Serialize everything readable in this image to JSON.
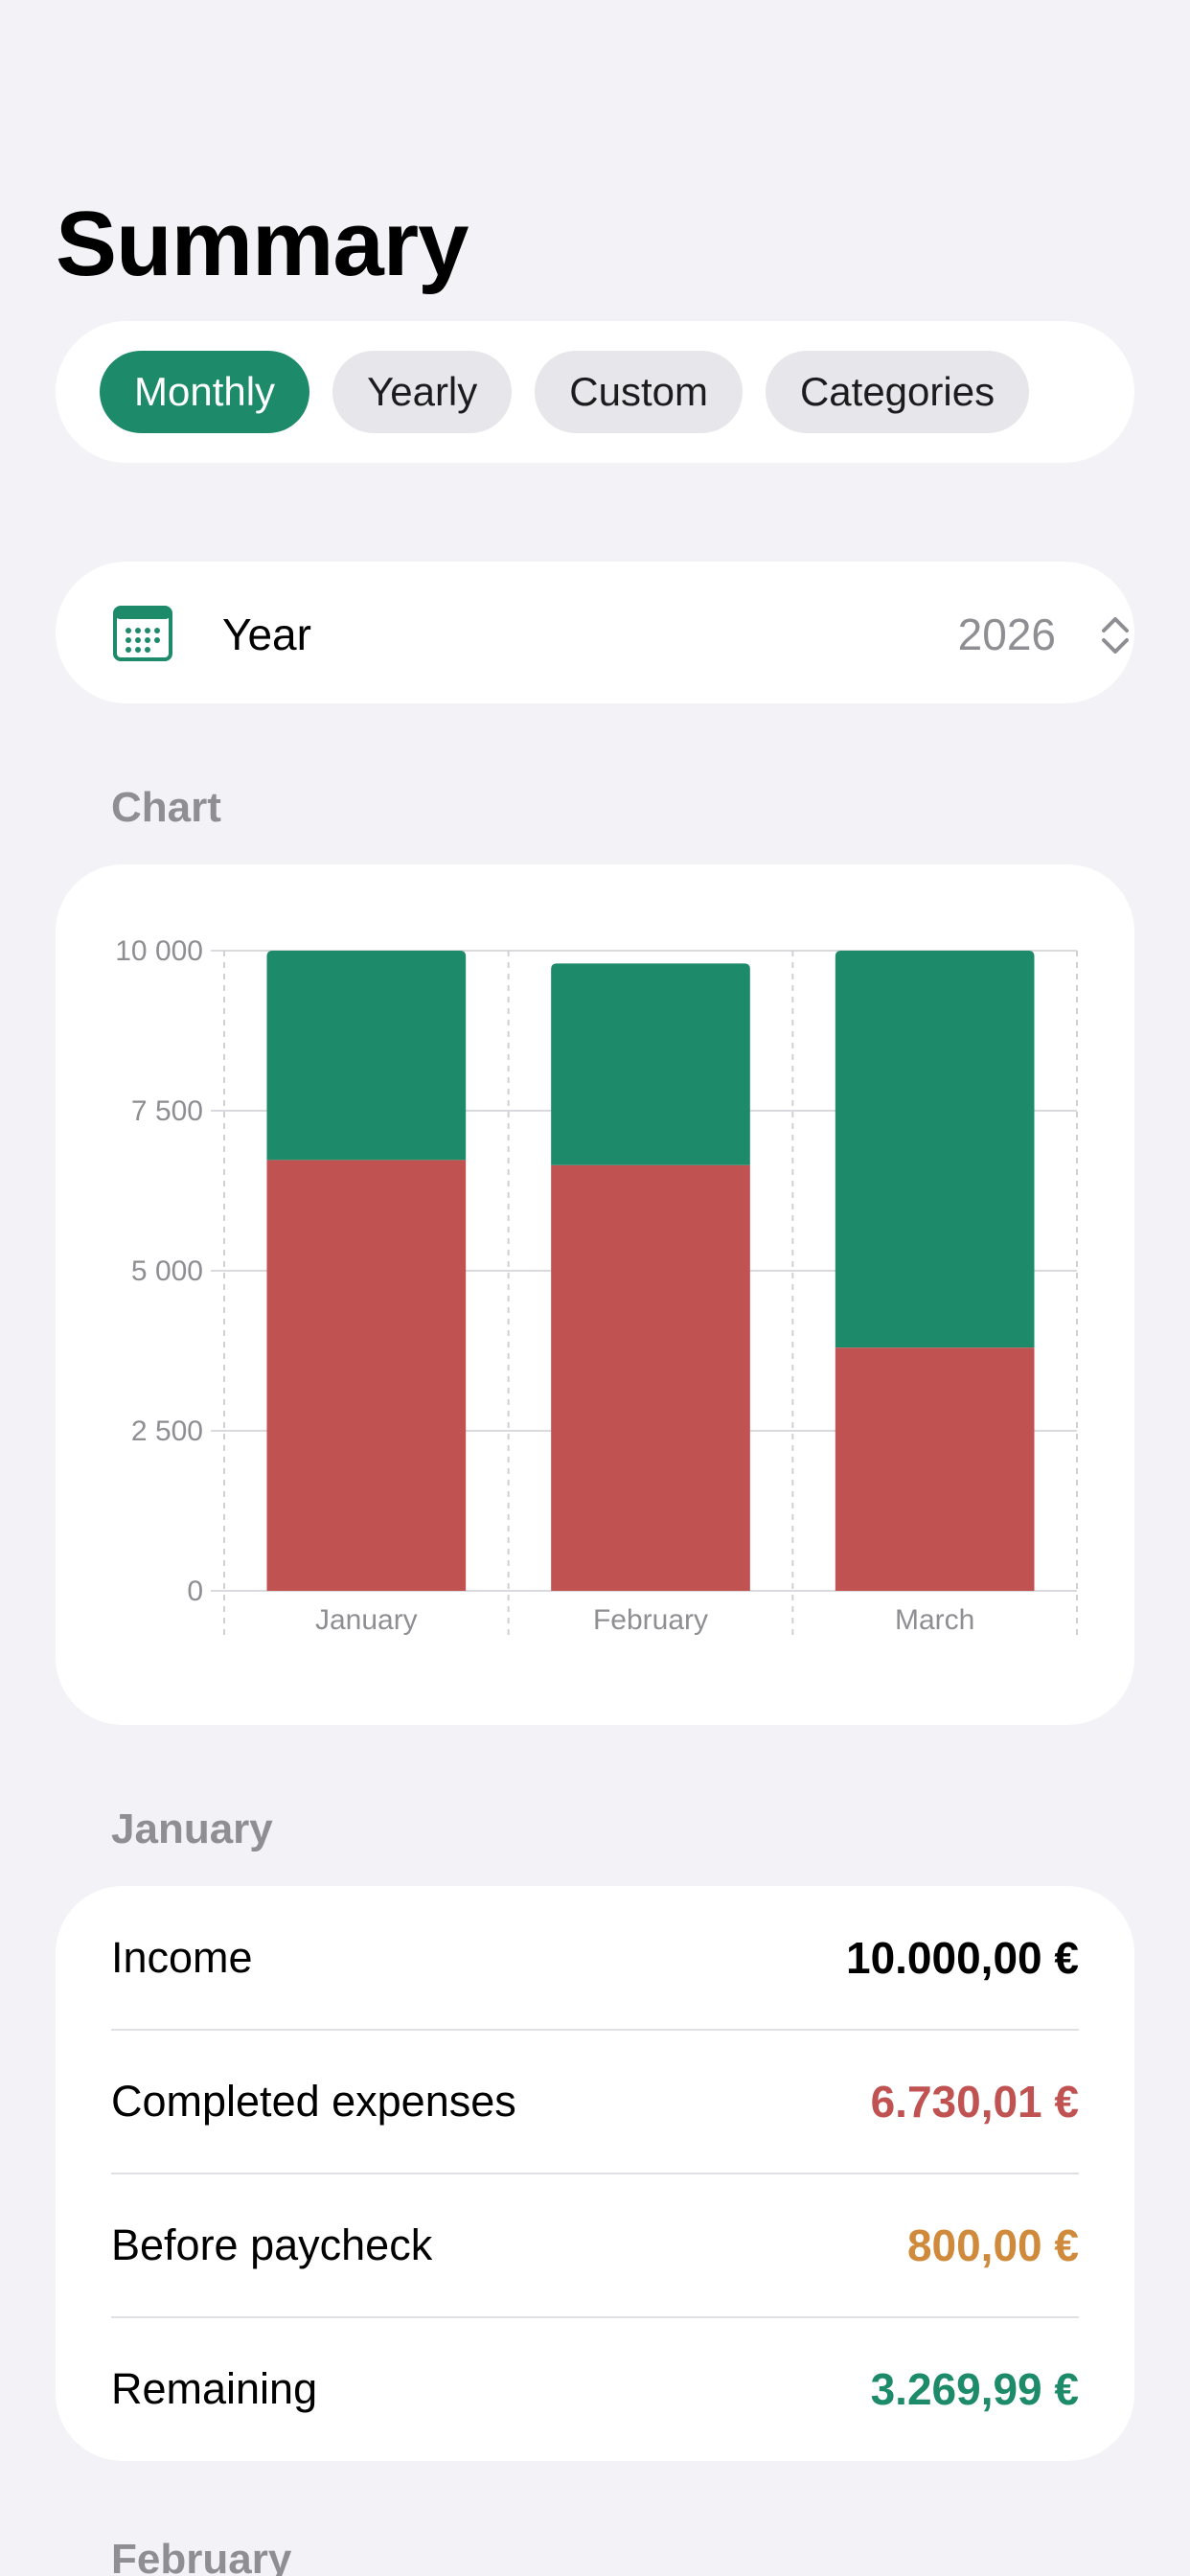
{
  "header": {
    "title": "Summary"
  },
  "segments": [
    {
      "label": "Monthly",
      "active": true
    },
    {
      "label": "Yearly",
      "active": false
    },
    {
      "label": "Custom",
      "active": false
    },
    {
      "label": "Categories",
      "active": false
    }
  ],
  "year_picker": {
    "label": "Year",
    "value": "2026",
    "icon": "calendar-icon",
    "chevron": "chevron-up-down-icon"
  },
  "chart_section": {
    "header": "Chart"
  },
  "chart_data": {
    "type": "bar",
    "stacked": true,
    "categories": [
      "January",
      "February",
      "March"
    ],
    "series": [
      {
        "name": "",
        "color": "#c05252",
        "values": [
          6730,
          6650,
          3800
        ]
      },
      {
        "name": "",
        "color": "#1d8a69",
        "values": [
          3270,
          3150,
          6200
        ]
      }
    ],
    "ylim": [
      0,
      10000
    ],
    "yticks": [
      0,
      2500,
      5000,
      7500,
      10000
    ],
    "ytick_labels": [
      "0",
      "2 500",
      "5 000",
      "7 500",
      "10 000"
    ],
    "grid": true
  },
  "january": {
    "header": "January",
    "rows": [
      {
        "label": "Income",
        "value": "10.000,00 €",
        "color": "#000000"
      },
      {
        "label": "Completed expenses",
        "value": "6.730,01 €",
        "color": "#c05252"
      },
      {
        "label": "Before paycheck",
        "value": "800,00 €",
        "color": "#d08a3c"
      },
      {
        "label": "Remaining",
        "value": "3.269,99 €",
        "color": "#1d8a69"
      }
    ]
  },
  "february": {
    "header": "February"
  },
  "colors": {
    "accent": "#1d8a69",
    "expense": "#c05252",
    "pending": "#d08a3c",
    "background": "#f2f2f7"
  }
}
